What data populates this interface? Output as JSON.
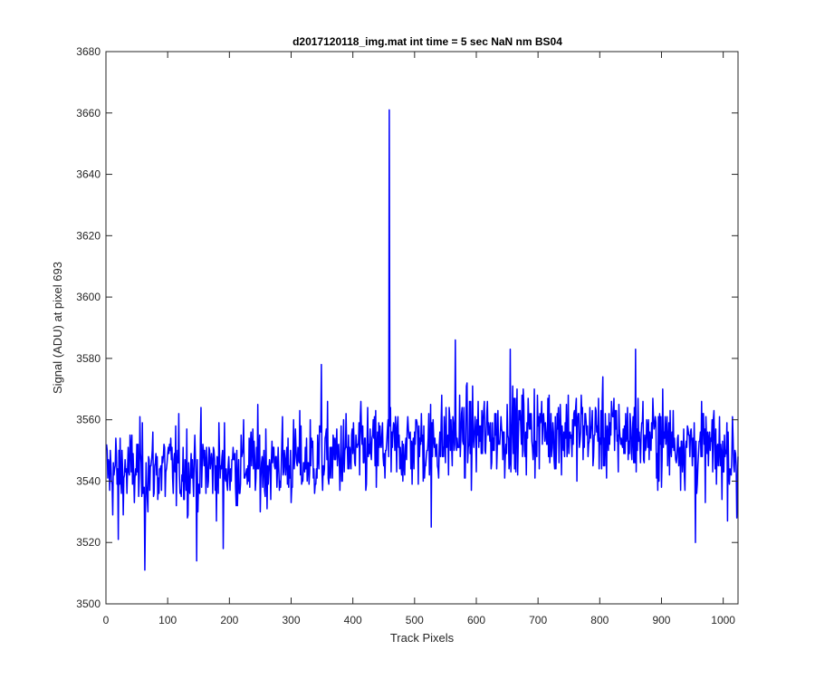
{
  "chart_data": {
    "type": "line",
    "title": "d2017120118_img.mat int time = 5 sec  NaN nm BS04",
    "xlabel": "Track Pixels",
    "ylabel": "Signal (ADU) at pixel 693",
    "xlim": [
      0,
      1024
    ],
    "ylim": [
      3500,
      3680
    ],
    "xticks": [
      0,
      100,
      200,
      300,
      400,
      500,
      600,
      700,
      800,
      900,
      1000
    ],
    "yticks": [
      3500,
      3520,
      3540,
      3560,
      3580,
      3600,
      3620,
      3640,
      3660,
      3680
    ],
    "grid": false,
    "legend": "none",
    "series": [
      {
        "color": "#0000ff",
        "n_points": 1024,
        "x_start": 1,
        "baseline_anchors": [
          [
            0,
            3543
          ],
          [
            100,
            3544
          ],
          [
            200,
            3545
          ],
          [
            300,
            3546
          ],
          [
            400,
            3549
          ],
          [
            500,
            3552
          ],
          [
            600,
            3555
          ],
          [
            700,
            3557
          ],
          [
            800,
            3556
          ],
          [
            900,
            3554
          ],
          [
            1000,
            3549
          ],
          [
            1024,
            3548
          ]
        ],
        "noise_std": 7,
        "notable_points": [
          {
            "x": 63,
            "y": 3511
          },
          {
            "x": 147,
            "y": 3514
          },
          {
            "x": 190,
            "y": 3518
          },
          {
            "x": 20,
            "y": 3521
          },
          {
            "x": 459,
            "y": 3661
          },
          {
            "x": 349,
            "y": 3578
          },
          {
            "x": 566,
            "y": 3586
          },
          {
            "x": 655,
            "y": 3583
          },
          {
            "x": 858,
            "y": 3583
          },
          {
            "x": 955,
            "y": 3520
          },
          {
            "x": 527,
            "y": 3525
          },
          {
            "x": 1022,
            "y": 3528
          }
        ]
      }
    ]
  }
}
